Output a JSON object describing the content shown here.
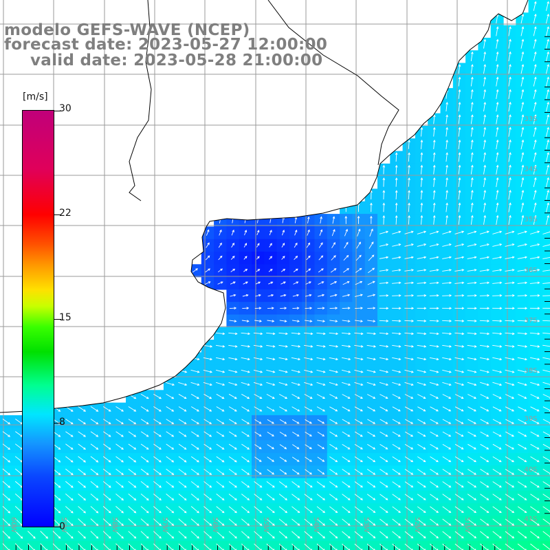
{
  "title": {
    "line1": "modelo GEFS-WAVE (NCEP)",
    "line2": "forecast date: 2023-05-27 12:00:00",
    "line3": "valid date: 2023-05-28 21:00:00"
  },
  "colorbar": {
    "unit": "[m/s]",
    "ticks": [
      "30",
      "22",
      "15",
      "8",
      "0"
    ],
    "tick_values": [
      30,
      22,
      15,
      8,
      0
    ],
    "min": 0,
    "max": 30
  },
  "map": {
    "land_color": "#ffffff",
    "coastline_color": "#000000",
    "grid_color": "#9a9a9a",
    "arrow_color": "#ffffff",
    "lat_labels": [
      "33S",
      "34S",
      "35S",
      "36S",
      "37S",
      "38S",
      "39S",
      "40S",
      "41S"
    ],
    "lon_labels": [
      "60W",
      "59W",
      "58W",
      "57W",
      "56W",
      "55W",
      "54W",
      "53W",
      "52W",
      "51W"
    ]
  }
}
